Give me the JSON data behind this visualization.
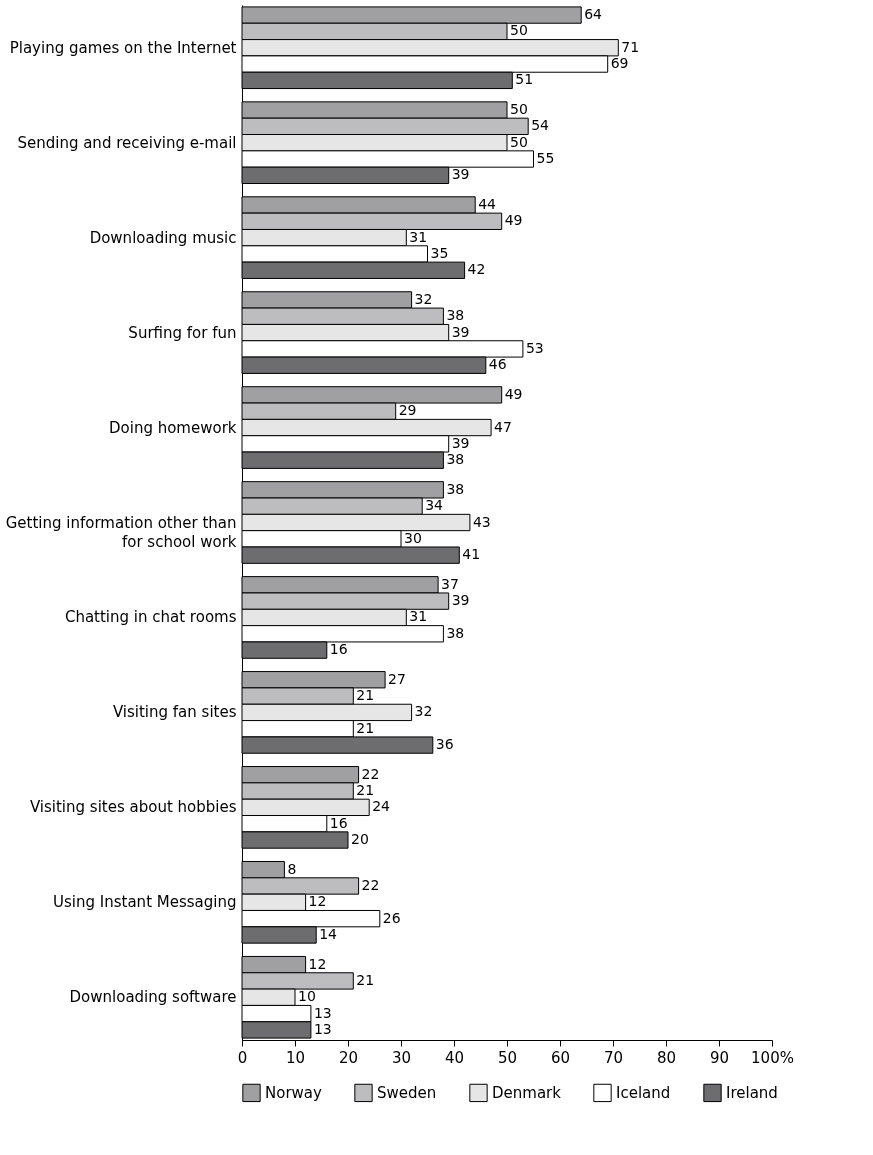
{
  "chart_data": {
    "type": "bar",
    "orientation": "horizontal",
    "categories": [
      "Playing games on the Internet",
      "Sending and receiving e-mail",
      "Downloading music",
      "Surfing for fun",
      "Doing homework",
      "Getting information other than for school work",
      "Chatting in chat rooms",
      "Visiting fan sites",
      "Visiting sites about hobbies",
      "Using Instant Messaging",
      "Downloading software"
    ],
    "series": [
      {
        "name": "Norway",
        "color": "#a0a0a2",
        "values": [
          64,
          50,
          44,
          32,
          49,
          38,
          37,
          27,
          22,
          8,
          12
        ]
      },
      {
        "name": "Sweden",
        "color": "#bdbdbf",
        "values": [
          50,
          54,
          49,
          38,
          29,
          34,
          39,
          21,
          21,
          22,
          21
        ]
      },
      {
        "name": "Denmark",
        "color": "#e6e6e6",
        "values": [
          71,
          50,
          31,
          39,
          47,
          43,
          31,
          32,
          24,
          12,
          10
        ]
      },
      {
        "name": "Iceland",
        "color": "#ffffff",
        "values": [
          69,
          55,
          35,
          53,
          39,
          30,
          38,
          21,
          16,
          26,
          13
        ]
      },
      {
        "name": "Ireland",
        "color": "#6d6d70",
        "values": [
          51,
          39,
          42,
          46,
          38,
          41,
          16,
          36,
          20,
          14,
          13
        ]
      }
    ],
    "xlim": [
      0,
      100
    ],
    "xticks": [
      0,
      10,
      20,
      30,
      40,
      50,
      60,
      70,
      80,
      90,
      {
        "value": 100,
        "label": "100%"
      }
    ],
    "data_labels": true,
    "legend": "bottom",
    "grid": false
  }
}
